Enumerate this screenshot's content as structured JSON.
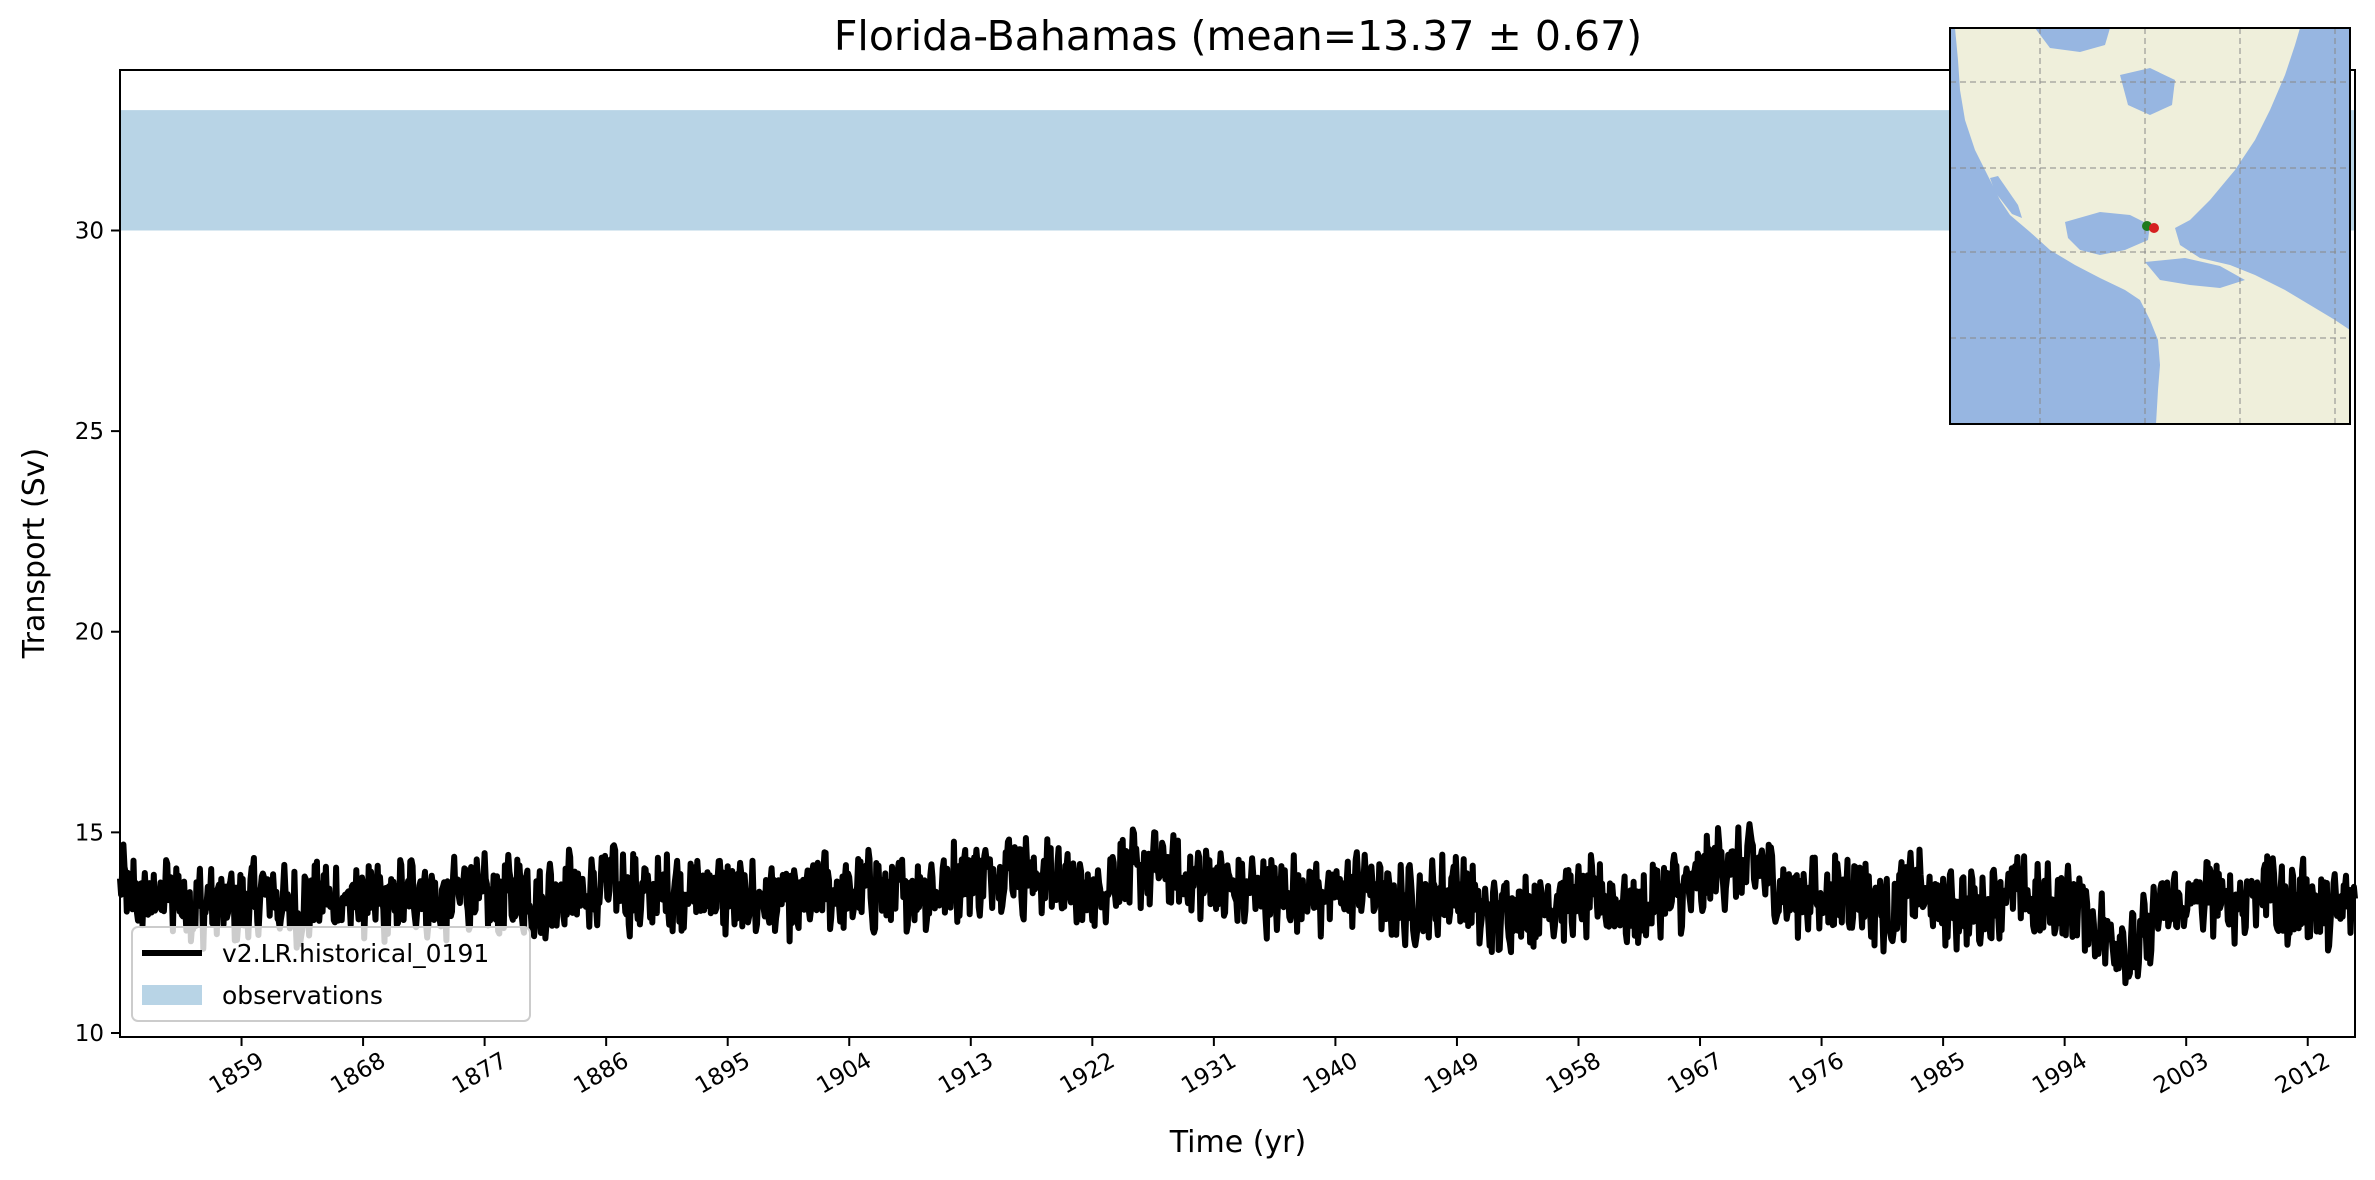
{
  "chart_data": {
    "type": "line",
    "title": "Florida-Bahamas (mean=13.37 ± 0.67)",
    "xlabel": "Time (yr)",
    "ylabel": "Transport (Sv)",
    "xlim": [
      1850,
      2015.5
    ],
    "ylim": [
      9.9,
      34.0
    ],
    "x_ticks": [
      1859,
      1868,
      1877,
      1886,
      1895,
      1904,
      1913,
      1922,
      1931,
      1940,
      1949,
      1958,
      1967,
      1976,
      1985,
      1994,
      2003,
      2012
    ],
    "x_tick_labels": [
      "1859",
      "1868",
      "1877",
      "1886",
      "1895",
      "1904",
      "1913",
      "1922",
      "1931",
      "1940",
      "1949",
      "1958",
      "1967",
      "1976",
      "1985",
      "1994",
      "2003",
      "2012"
    ],
    "y_ticks": [
      10,
      15,
      20,
      25,
      30
    ],
    "y_tick_labels": [
      "10",
      "15",
      "20",
      "25",
      "30"
    ],
    "grid": false,
    "legend_position": "lower-left",
    "series": [
      {
        "name": "v2.LR.historical_0191",
        "kind": "line",
        "color": "#000000",
        "x_start": 1850,
        "x_end": 2015,
        "approx_annual_mean": [
          13.6,
          13.5,
          13.4,
          13.3,
          13.5,
          13.3,
          13.2,
          13.1,
          13.2,
          13.3,
          13.3,
          13.4,
          13.3,
          13.1,
          13.2,
          13.3,
          13.4,
          13.3,
          13.2,
          13.2,
          13.3,
          13.4,
          13.5,
          13.4,
          13.3,
          13.4,
          13.5,
          13.4,
          13.3,
          13.4,
          13.5,
          13.3,
          13.4,
          13.6,
          13.5,
          13.5,
          13.7,
          13.6,
          13.5,
          13.5,
          13.4,
          13.5,
          13.7,
          13.6,
          13.5,
          13.4,
          13.5,
          13.3,
          13.2,
          13.4,
          13.3,
          13.2,
          13.5,
          13.6,
          13.4,
          13.5,
          13.5,
          13.6,
          13.4,
          13.5,
          13.6,
          13.7,
          13.8,
          13.9,
          14.0,
          14.1,
          14.1,
          13.9,
          14.0,
          13.9,
          13.6,
          13.5,
          13.5,
          13.7,
          13.9,
          14.0,
          14.1,
          14.0,
          14.0,
          13.9,
          13.8,
          13.7,
          13.6,
          13.6,
          13.5,
          13.4,
          13.5,
          13.6,
          13.5,
          13.4,
          13.5,
          13.6,
          13.6,
          13.5,
          13.3,
          13.2,
          13.1,
          13.4,
          13.5,
          13.6,
          13.2,
          13.0,
          12.9,
          13.0,
          13.1,
          13.2,
          13.3,
          13.2,
          13.3,
          13.4,
          13.3,
          13.1,
          13.0,
          13.2,
          13.3,
          13.5,
          13.6,
          13.7,
          14.0,
          14.2,
          14.3,
          14.1,
          13.9,
          13.6,
          13.5,
          13.4,
          13.3,
          13.5,
          13.6,
          13.4,
          13.2,
          13.1,
          13.4,
          13.5,
          13.3,
          13.2,
          13.1,
          13.0,
          13.2,
          13.4,
          13.5,
          13.4,
          13.3,
          13.2,
          13.1,
          13.3,
          12.9,
          12.4,
          12.2,
          12.0,
          12.5,
          13.0,
          13.1,
          13.3,
          13.4,
          13.3,
          13.2,
          13.4,
          13.5,
          13.6,
          13.2,
          13.3,
          13.2,
          13.0,
          13.1,
          13.3
        ]
      },
      {
        "name": "observations",
        "kind": "band",
        "color": "#b8d4e6",
        "y_range": [
          30.0,
          33.0
        ]
      }
    ]
  },
  "inset_map": {
    "description": "North and South America inset",
    "land_color": "#efefdb",
    "ocean_color": "#97b6e1",
    "markers": [
      {
        "color": "#1e7a1e",
        "label": "start"
      },
      {
        "color": "#d62020",
        "label": "end"
      }
    ]
  }
}
